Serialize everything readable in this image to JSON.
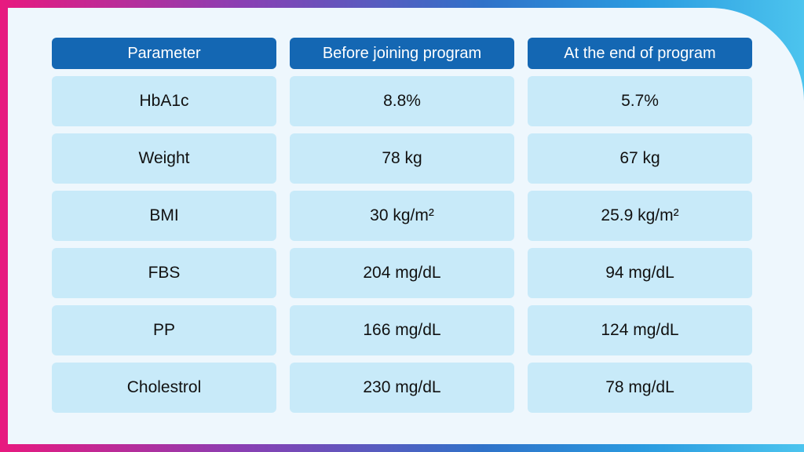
{
  "table": {
    "headers": [
      "Parameter",
      "Before joining program",
      "At the end of program"
    ],
    "rows": [
      [
        "HbA1c",
        "8.8%",
        "5.7%"
      ],
      [
        "Weight",
        "78 kg",
        "67 kg"
      ],
      [
        "BMI",
        "30 kg/m²",
        "25.9 kg/m²"
      ],
      [
        "FBS",
        "204 mg/dL",
        "94 mg/dL"
      ],
      [
        "PP",
        "166 mg/dL",
        "124 mg/dL"
      ],
      [
        "Cholestrol",
        "230 mg/dL",
        "78 mg/dL"
      ]
    ]
  },
  "colors": {
    "header_bg": "#1467b3",
    "cell_bg": "#c8eaf9",
    "panel_bg": "#eef7fd"
  }
}
